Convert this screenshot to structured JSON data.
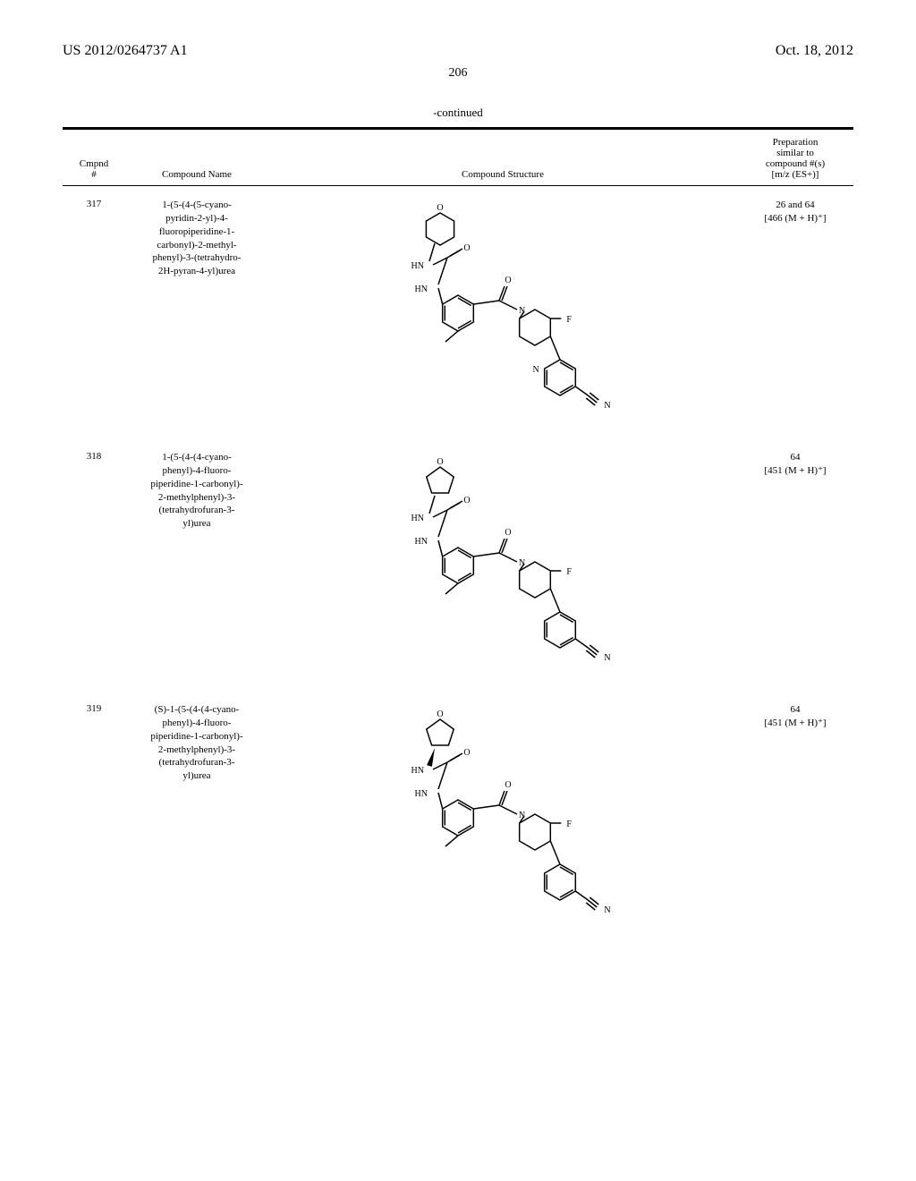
{
  "header": {
    "doc_number": "US 2012/0264737 A1",
    "date": "Oct. 18, 2012"
  },
  "page_number": "206",
  "table": {
    "continued_label": "-continued",
    "columns": {
      "cmpd_num": "Cmpnd\n#",
      "name": "Compound Name",
      "structure": "Compound Structure",
      "prep": "Preparation\nsimilar to\ncompound #(s)\n[m/z (ES+)]"
    },
    "rows": [
      {
        "num": "317",
        "name": "1-(5-(4-(5-cyano-\npyridin-2-yl)-4-\nfluoropiperidine-1-\ncarbonyl)-2-methyl-\nphenyl)-3-(tetrahydro-\n2H-pyran-4-yl)urea",
        "prep": "26 and 64\n[466 (M + H)⁺]",
        "structure": {
          "top_ring": "pyran6",
          "aryl_tail": "pyridyl-CN",
          "atom_labels": [
            "O",
            "HN",
            "O",
            "HN",
            "O",
            "N",
            "F",
            "N",
            "N"
          ],
          "style": {
            "stroke": "#000000",
            "stroke_width": 1.5,
            "font_size": 10
          }
        }
      },
      {
        "num": "318",
        "name": "1-(5-(4-(4-cyano-\nphenyl)-4-fluoro-\npiperidine-1-carbonyl)-\n2-methylphenyl)-3-\n(tetrahydrofuran-3-\nyl)urea",
        "prep": "64\n[451 (M + H)⁺]",
        "structure": {
          "top_ring": "thf5",
          "aryl_tail": "phenyl-CN",
          "atom_labels": [
            "O",
            "HN",
            "O",
            "HN",
            "O",
            "N",
            "F",
            "N"
          ],
          "style": {
            "stroke": "#000000",
            "stroke_width": 1.5,
            "font_size": 10
          }
        }
      },
      {
        "num": "319",
        "name": "(S)-1-(5-(4-(4-cyano-\nphenyl)-4-fluoro-\npiperidine-1-carbonyl)-\n2-methylphenyl)-3-\n(tetrahydrofuran-3-\nyl)urea",
        "prep": "64\n[451 (M + H)⁺]",
        "structure": {
          "top_ring": "thf5",
          "wedge": true,
          "aryl_tail": "phenyl-CN",
          "atom_labels": [
            "O",
            "HN",
            "O",
            "HN",
            "O",
            "N",
            "F",
            "N"
          ],
          "style": {
            "stroke": "#000000",
            "stroke_width": 1.5,
            "font_size": 10
          }
        }
      }
    ]
  }
}
